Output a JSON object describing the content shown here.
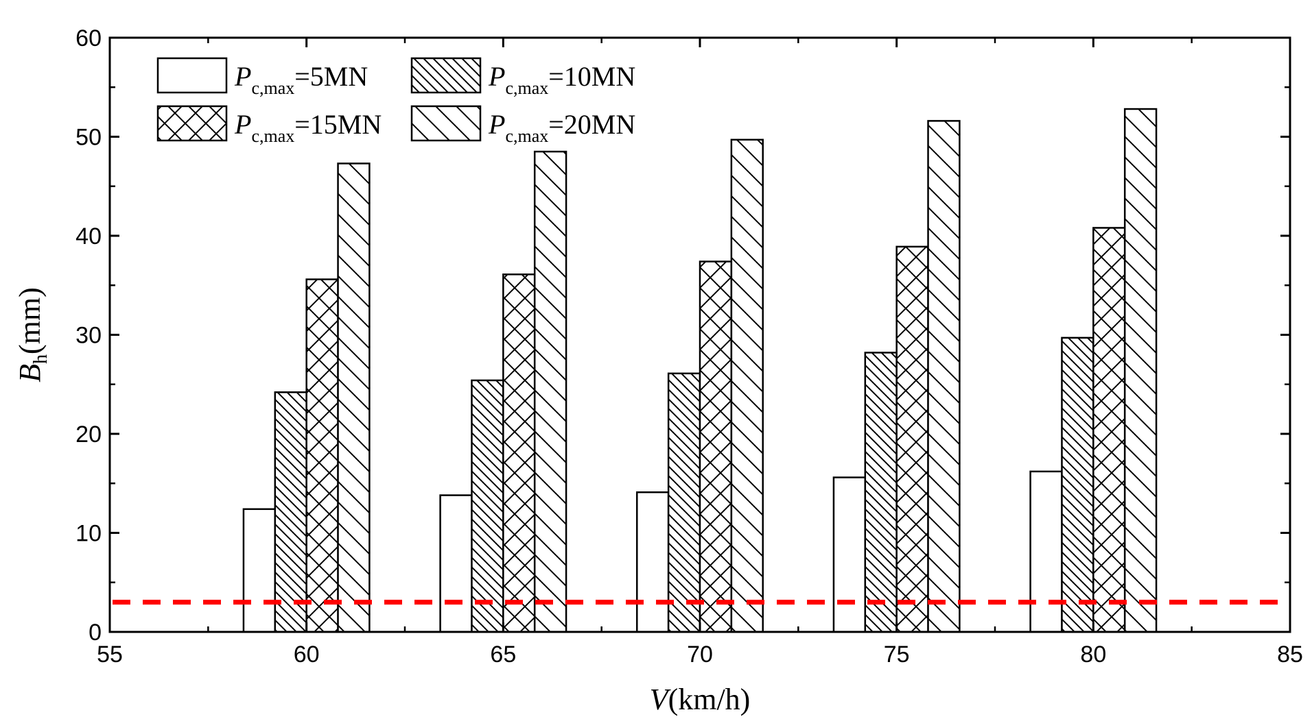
{
  "chart_data": {
    "type": "bar",
    "title": "",
    "xlabel": {
      "var": "V",
      "unit": "(km/h)"
    },
    "ylabel": {
      "var": "B",
      "sub": "h",
      "unit": "(mm)"
    },
    "xlim": [
      55,
      85
    ],
    "ylim": [
      0,
      60
    ],
    "xticks": [
      "55",
      "60",
      "65",
      "70",
      "75",
      "80",
      "85"
    ],
    "yticks": [
      "0",
      "10",
      "20",
      "30",
      "40",
      "50",
      "60"
    ],
    "categories": [
      60,
      65,
      70,
      75,
      80
    ],
    "series": [
      {
        "name": "Pc,max=5MN",
        "label": {
          "var": "P",
          "sub": "c,max",
          "rest": "=5MN"
        },
        "pattern": "none",
        "values": [
          12.4,
          13.8,
          14.1,
          15.6,
          16.2
        ]
      },
      {
        "name": "Pc,max=10MN",
        "label": {
          "var": "P",
          "sub": "c,max",
          "rest": "=10MN"
        },
        "pattern": "dense-diag",
        "values": [
          24.2,
          25.4,
          26.1,
          28.2,
          29.7
        ]
      },
      {
        "name": "Pc,max=15MN",
        "label": {
          "var": "P",
          "sub": "c,max",
          "rest": "=15MN"
        },
        "pattern": "crosshatch",
        "values": [
          35.6,
          36.1,
          37.4,
          38.9,
          40.8
        ]
      },
      {
        "name": "Pc,max=20MN",
        "label": {
          "var": "P",
          "sub": "c,max",
          "rest": "=20MN"
        },
        "pattern": "sparse-diag",
        "values": [
          47.3,
          48.5,
          49.7,
          51.6,
          52.8
        ]
      }
    ],
    "reference_line": {
      "y": 3,
      "style": "dashed",
      "color": "#ff0000"
    },
    "bar_width_units": 0.8,
    "legend": "top-left"
  }
}
